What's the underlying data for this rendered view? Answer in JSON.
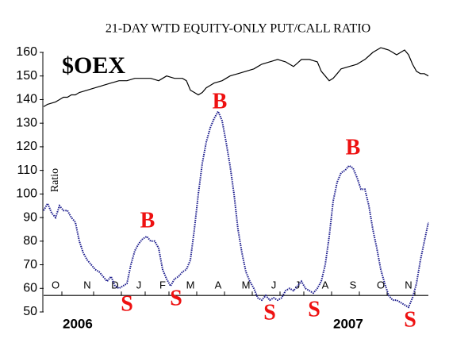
{
  "chart_data": {
    "type": "line",
    "title": "21-DAY WTD EQUITY-ONLY PUT/CALL RATIO",
    "ylim": [
      50,
      160
    ],
    "yticks": [
      50,
      60,
      70,
      80,
      90,
      100,
      110,
      120,
      130,
      140,
      150,
      160
    ],
    "xaxis_value": 57,
    "categories": [
      null,
      null,
      null,
      "O",
      null,
      null,
      null,
      null,
      null,
      null,
      null,
      "N",
      null,
      null,
      null,
      null,
      null,
      null,
      "D",
      null,
      null,
      null,
      null,
      null,
      "J",
      null,
      null,
      null,
      null,
      null,
      "F",
      null,
      null,
      null,
      null,
      null,
      null,
      "M",
      null,
      null,
      null,
      null,
      null,
      null,
      "A",
      null,
      null,
      null,
      null,
      null,
      null,
      "M",
      null,
      null,
      null,
      null,
      null,
      null,
      "J",
      null,
      null,
      null,
      null,
      null,
      "J",
      null,
      null,
      null,
      null,
      null,
      null,
      "A",
      null,
      null,
      null,
      null,
      null,
      null,
      "S",
      null,
      null,
      null,
      null,
      null,
      null,
      "O",
      null,
      null,
      null,
      null,
      null,
      null,
      "N",
      null,
      null,
      null,
      null,
      null
    ],
    "series": [
      {
        "name": "$OEX",
        "color": "#000000",
        "style": "solid",
        "values": [
          137,
          138,
          138.5,
          139,
          140,
          141,
          141,
          142,
          142,
          143,
          143.5,
          144,
          144.5,
          145,
          145.5,
          146,
          146.5,
          147,
          147.5,
          148,
          148,
          148,
          148.5,
          149,
          149,
          149,
          149,
          149,
          148.5,
          148,
          149,
          150,
          149.5,
          149,
          149,
          149,
          148,
          144,
          143,
          142,
          143,
          145,
          146,
          147,
          147.5,
          148,
          149,
          150,
          150.5,
          151,
          151.5,
          152,
          152.5,
          153,
          154,
          155,
          155.5,
          156,
          156.5,
          157,
          156.5,
          156,
          155,
          154,
          155.5,
          157,
          157,
          157,
          156.5,
          156,
          152,
          150,
          148,
          149,
          151,
          153,
          153.5,
          154,
          154.5,
          155,
          156,
          157,
          158.5,
          160,
          161,
          162,
          161.5,
          161,
          160,
          159,
          160,
          161,
          159,
          155,
          152,
          151,
          151,
          150
        ]
      },
      {
        "name": "Ratio",
        "color": "#1a1a8c",
        "style": "dotted",
        "values": [
          93,
          96,
          92,
          90,
          95,
          93,
          93,
          90,
          88,
          80,
          75,
          72,
          70,
          68,
          67,
          65,
          63,
          65,
          61,
          60,
          61,
          62,
          70,
          76,
          79,
          81,
          82,
          80,
          80,
          77,
          68,
          64,
          61,
          64,
          65,
          67,
          68,
          72,
          85,
          100,
          113,
          122,
          128,
          132,
          135,
          131,
          122,
          112,
          100,
          85,
          75,
          67,
          63,
          60,
          56,
          55,
          57,
          55,
          56,
          55,
          56,
          59,
          60,
          59,
          61,
          63,
          60,
          59,
          58,
          60,
          63,
          70,
          82,
          97,
          105,
          109,
          110,
          112,
          111,
          107,
          102,
          102,
          95,
          85,
          77,
          68,
          62,
          57,
          55,
          55,
          54,
          53,
          52,
          56,
          62,
          72,
          80,
          88
        ]
      }
    ],
    "annotations": [
      "S",
      "B",
      "S",
      "B",
      "S",
      "S",
      "B",
      "S"
    ],
    "annotation_color": "#ee1111",
    "years": [
      "2006",
      "2007"
    ]
  }
}
